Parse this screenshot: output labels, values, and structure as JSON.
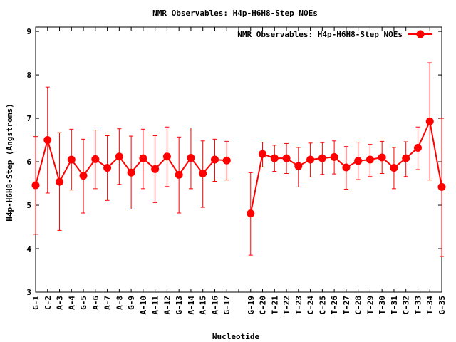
{
  "chart_data": {
    "type": "line",
    "title": "NMR Observables: H4p-H6H8-Step NOEs",
    "xlabel": "Nucleotide",
    "ylabel": "H4p-H6H8-Step (Angstroms)",
    "ylim": [
      3,
      9.1
    ],
    "yticks": [
      3,
      4,
      5,
      6,
      7,
      8,
      9
    ],
    "legend_position": "top-right",
    "grid": false,
    "color": "#ff0000",
    "categories": [
      "G-1",
      "C-2",
      "A-3",
      "A-4",
      "G-5",
      "A-6",
      "A-7",
      "A-8",
      "G-9",
      "A-10",
      "A-11",
      "A-12",
      "G-13",
      "A-14",
      "A-15",
      "A-16",
      "G-17",
      "",
      "G-19",
      "C-20",
      "T-21",
      "T-22",
      "T-23",
      "C-24",
      "C-25",
      "T-26",
      "T-27",
      "C-28",
      "T-29",
      "T-30",
      "T-31",
      "C-32",
      "T-33",
      "T-34",
      "G-35"
    ],
    "series": [
      {
        "name": "NMR Observables: H4p-H6H8-Step NOEs",
        "values": [
          5.46,
          6.5,
          5.54,
          6.05,
          5.68,
          6.06,
          5.86,
          6.12,
          5.75,
          6.08,
          5.83,
          6.12,
          5.7,
          6.09,
          5.73,
          6.05,
          6.03,
          null,
          4.81,
          6.18,
          6.08,
          6.08,
          5.9,
          6.05,
          6.08,
          6.11,
          5.87,
          6.02,
          6.05,
          6.1,
          5.86,
          6.08,
          6.32,
          6.93,
          5.42
        ],
        "err_low": [
          4.33,
          5.28,
          4.42,
          5.35,
          4.82,
          5.38,
          5.11,
          5.48,
          4.91,
          5.38,
          5.06,
          5.43,
          4.82,
          5.38,
          4.95,
          5.55,
          5.58,
          null,
          3.85,
          5.88,
          5.78,
          5.73,
          5.42,
          5.65,
          5.71,
          5.72,
          5.37,
          5.59,
          5.66,
          5.73,
          5.38,
          5.66,
          5.82,
          5.58,
          3.82
        ],
        "err_high": [
          6.58,
          7.72,
          6.67,
          6.75,
          6.52,
          6.73,
          6.6,
          6.76,
          6.59,
          6.75,
          6.6,
          6.8,
          6.57,
          6.78,
          6.48,
          6.52,
          6.47,
          null,
          5.75,
          6.45,
          6.38,
          6.42,
          6.33,
          6.43,
          6.44,
          6.48,
          6.35,
          6.45,
          6.4,
          6.47,
          6.33,
          6.46,
          6.8,
          8.28,
          7.0
        ]
      }
    ]
  }
}
